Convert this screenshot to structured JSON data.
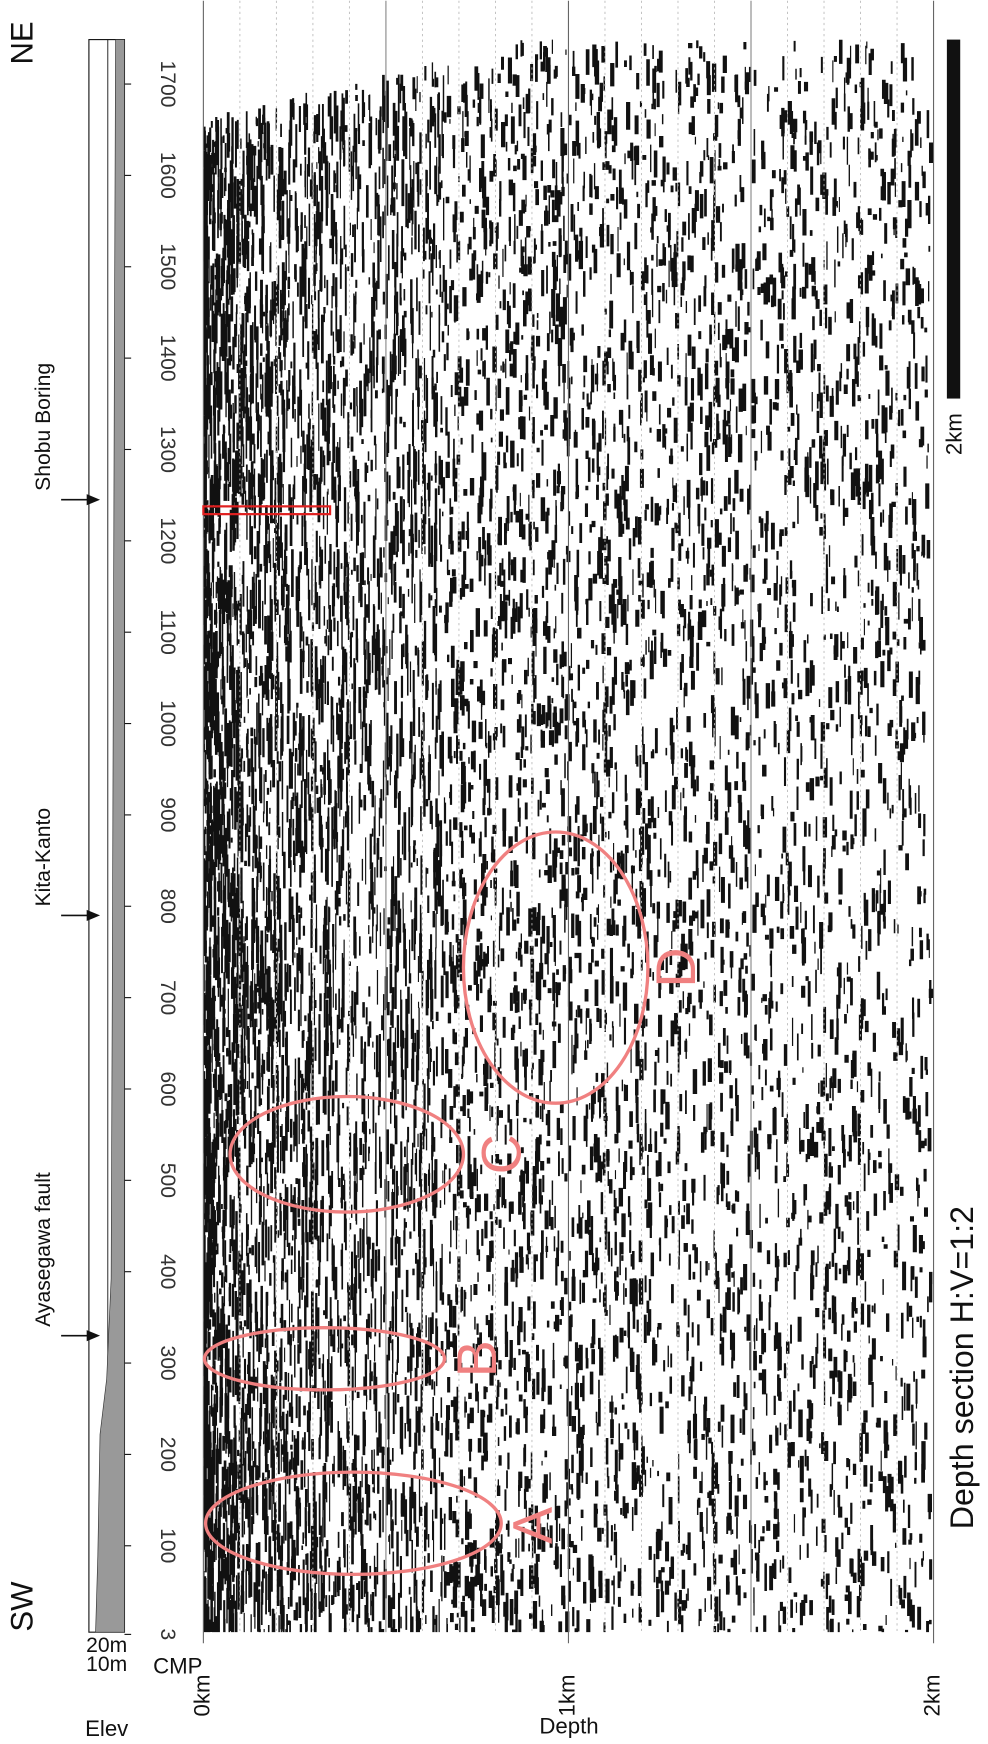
{
  "title": "Depth section H:V=1:2",
  "direction_labels": {
    "left": "SW",
    "right": "NE"
  },
  "markers": [
    {
      "label": "Ayasegawa fault",
      "cmp": 330
    },
    {
      "label": "Kita-Kanto",
      "cmp": 790
    },
    {
      "label": "Shobu Boring",
      "cmp": 1245
    }
  ],
  "elev_axis": {
    "label": "Elev",
    "ticks": [
      "20m",
      "10m"
    ]
  },
  "cmp_axis": {
    "label": "CMP",
    "ticks": [
      3,
      100,
      200,
      300,
      400,
      500,
      600,
      700,
      800,
      900,
      1000,
      1100,
      1200,
      1300,
      1400,
      1500,
      1600,
      1700
    ]
  },
  "depth_axis": {
    "label": "Depth",
    "ticks": [
      {
        "value": 0,
        "label": "0km"
      },
      {
        "value": 1,
        "label": "1km"
      },
      {
        "value": 2,
        "label": "2km"
      }
    ]
  },
  "zones": [
    "A",
    "B",
    "C",
    "D"
  ],
  "scale_bar": {
    "label": "2km"
  }
}
